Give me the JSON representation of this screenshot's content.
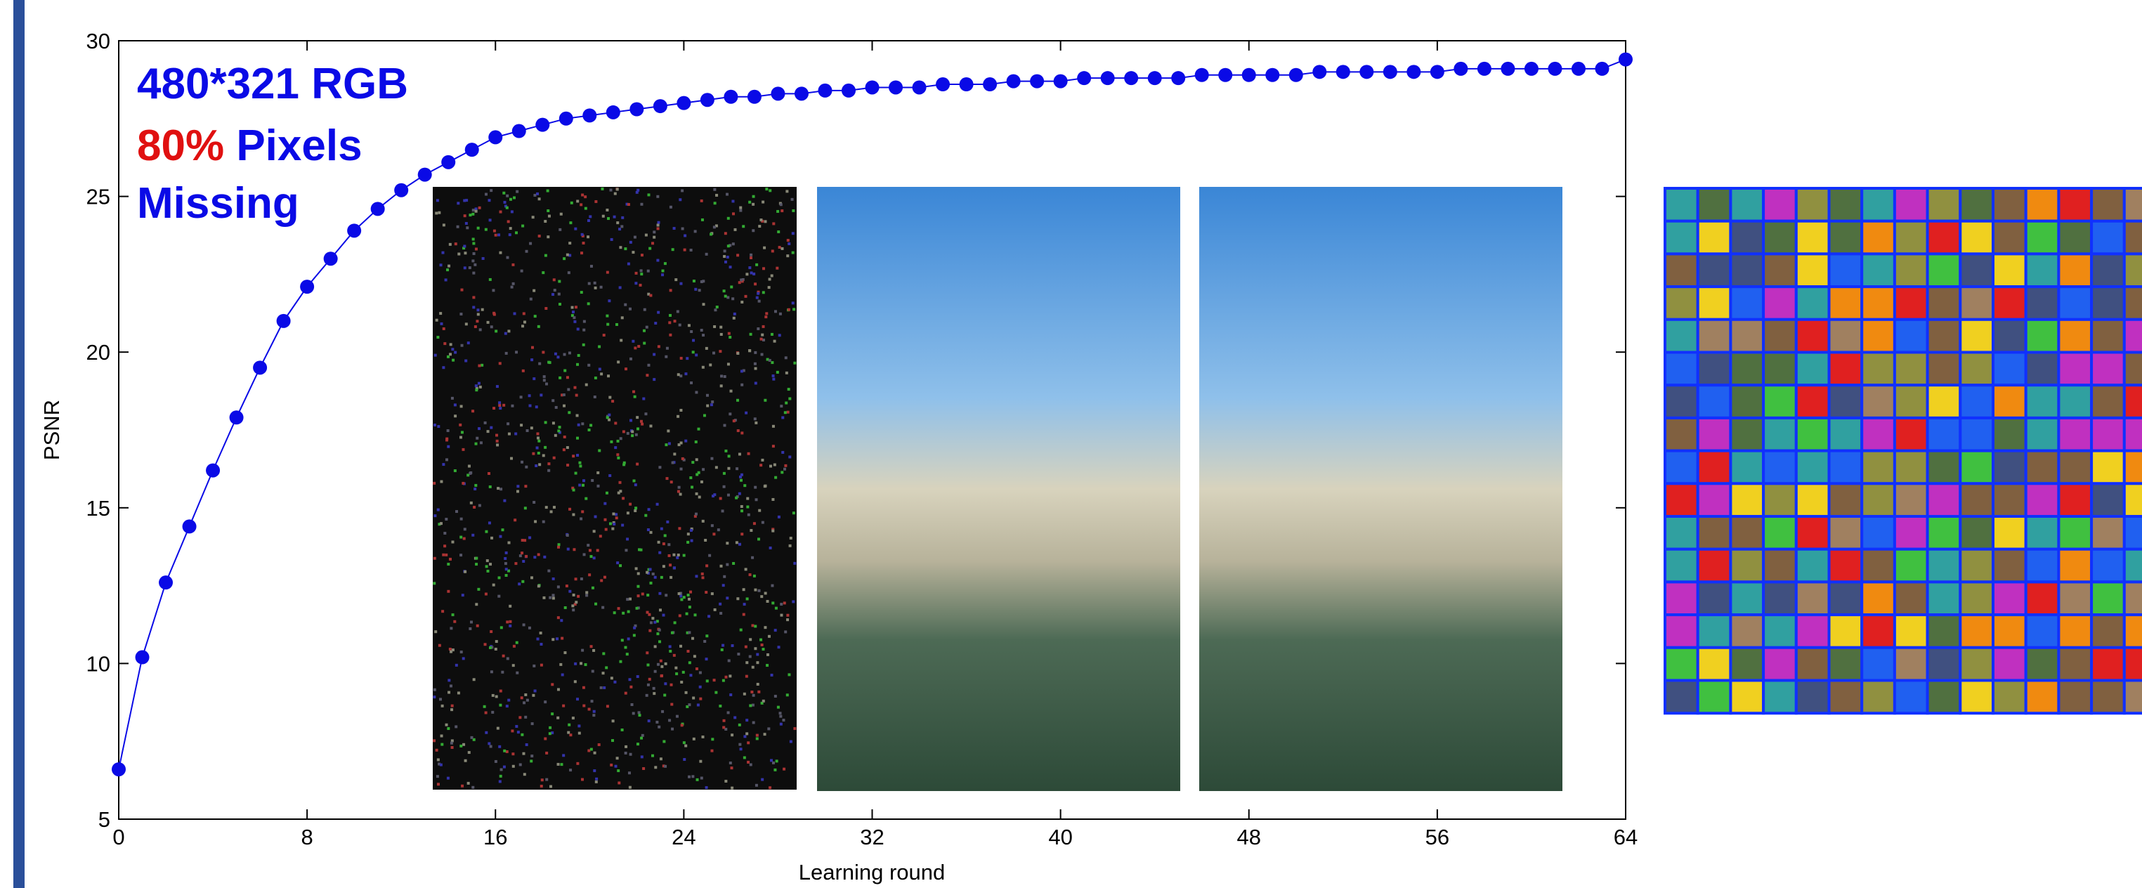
{
  "chart_data": {
    "type": "line",
    "x_label": "Learning round",
    "y_label": "PSNR",
    "annotation": {
      "resolution": "480*321 RGB",
      "ratio": "80%",
      "pixels": "Pixels",
      "missing": "Missing"
    },
    "x": [
      0,
      1,
      2,
      3,
      4,
      5,
      6,
      7,
      8,
      9,
      10,
      11,
      12,
      13,
      14,
      15,
      16,
      17,
      18,
      19,
      20,
      21,
      22,
      23,
      24,
      25,
      26,
      27,
      28,
      29,
      30,
      31,
      32,
      33,
      34,
      35,
      36,
      37,
      38,
      39,
      40,
      41,
      42,
      43,
      44,
      45,
      46,
      47,
      48,
      49,
      50,
      51,
      52,
      53,
      54,
      55,
      56,
      57,
      58,
      59,
      60,
      61,
      62,
      63,
      64
    ],
    "values": [
      6.6,
      10.2,
      12.6,
      14.4,
      16.2,
      17.9,
      19.5,
      21.0,
      22.1,
      23.0,
      23.9,
      24.6,
      25.2,
      25.7,
      26.1,
      26.5,
      26.9,
      27.1,
      27.3,
      27.5,
      27.6,
      27.7,
      27.8,
      27.9,
      28.0,
      28.1,
      28.2,
      28.2,
      28.3,
      28.3,
      28.4,
      28.4,
      28.5,
      28.5,
      28.5,
      28.6,
      28.6,
      28.6,
      28.7,
      28.7,
      28.7,
      28.8,
      28.8,
      28.8,
      28.8,
      28.8,
      28.9,
      28.9,
      28.9,
      28.9,
      28.9,
      29.0,
      29.0,
      29.0,
      29.0,
      29.0,
      29.0,
      29.1,
      29.1,
      29.1,
      29.1,
      29.1,
      29.1,
      29.1,
      29.4
    ],
    "color": "#0a0ae6",
    "xlim": [
      0,
      64
    ],
    "xticks": [
      0,
      8,
      16,
      24,
      32,
      40,
      48,
      56,
      64
    ],
    "ylim": [
      5,
      30
    ],
    "yticks": [
      5,
      10,
      15,
      20,
      25,
      30
    ],
    "grid": false
  }
}
